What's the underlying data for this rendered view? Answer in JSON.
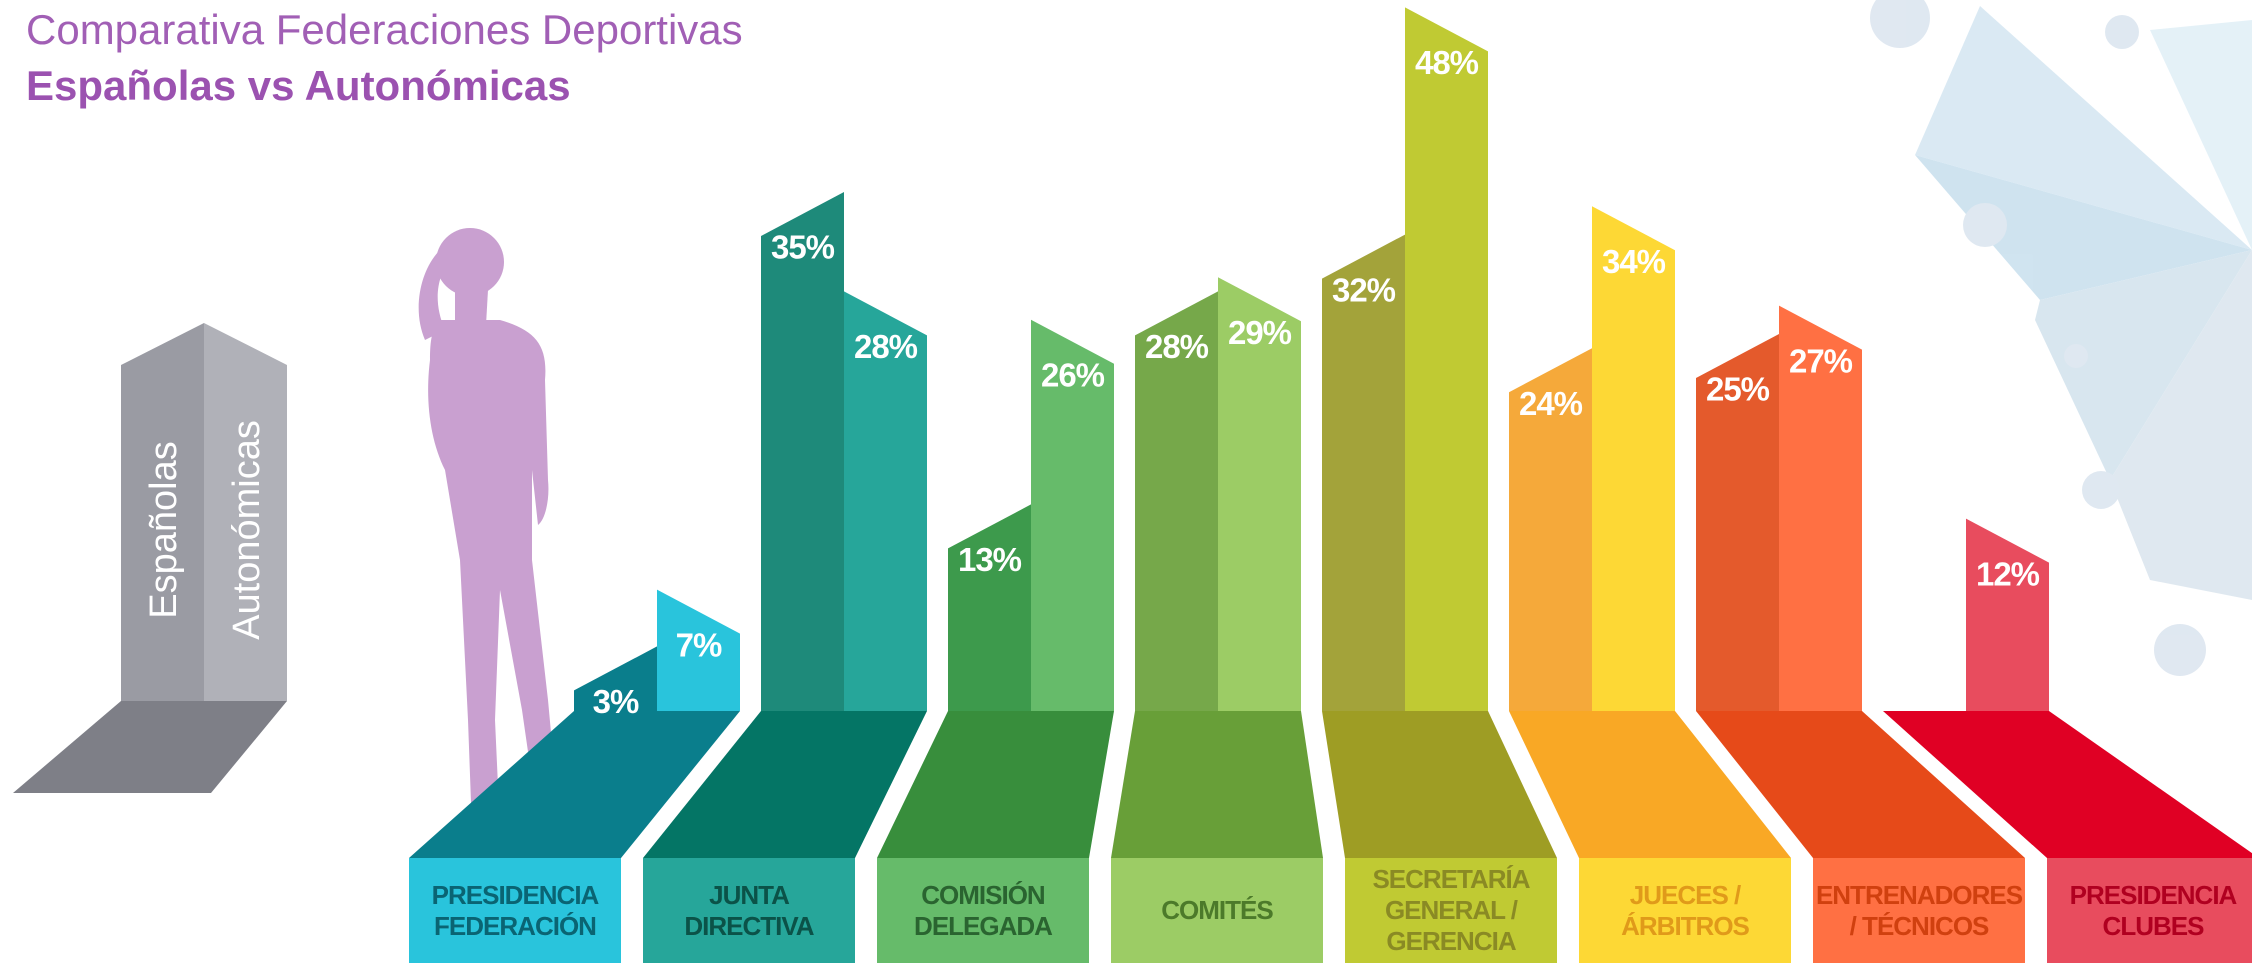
{
  "chart_data": {
    "type": "bar",
    "title": "Comparativa Federaciones Deportivas",
    "subtitle": "Españolas vs Autonómicas",
    "categories": [
      "PRESIDENCIA FEDERACIÓN",
      "JUNTA DIRECTIVA",
      "COMISIÓN DELEGADA",
      "COMITÉS",
      "SECRETARÍA GENERAL / GERENCIA",
      "JUECES / ÁRBITROS",
      "ENTRENADORES / TÉCNICOS",
      "PRESIDENCIA CLUBES"
    ],
    "series": [
      {
        "name": "Españolas",
        "color": "#9a9ba3",
        "values": [
          3,
          35,
          13,
          28,
          32,
          24,
          25,
          null
        ],
        "value_labels": [
          "3%",
          "35%",
          "13%",
          "28%",
          "32%",
          "24%",
          "25%",
          null
        ]
      },
      {
        "name": "Autonómicas",
        "color": "#b0b1b8",
        "values": [
          7,
          28,
          26,
          29,
          48,
          34,
          27,
          12
        ],
        "value_labels": [
          "7%",
          "28%",
          "26%",
          "29%",
          "48%",
          "34%",
          "27%",
          "12%"
        ]
      }
    ],
    "category_colors": [
      {
        "dark": "#0a7e8c",
        "light": "#29c4dc",
        "floor": "#0a7e8c",
        "box": "#29c4dc",
        "text": "#0a6473"
      },
      {
        "dark": "#1e8a7a",
        "light": "#26a69a",
        "floor": "#047565",
        "box": "#26a69a",
        "text": "#0b5248"
      },
      {
        "dark": "#3d9a4c",
        "light": "#66bb6a",
        "floor": "#388e3c",
        "box": "#66bb6a",
        "text": "#2a6430"
      },
      {
        "dark": "#76a84a",
        "light": "#9ccc65",
        "floor": "#689f38",
        "box": "#9ccc65",
        "text": "#4c7a2a"
      },
      {
        "dark": "#a3a33a",
        "light": "#c0ca33",
        "floor": "#9e9d24",
        "box": "#c0ca33",
        "text": "#8a8a24"
      },
      {
        "dark": "#f5a93a",
        "light": "#fdd835",
        "floor": "#f9a825",
        "box": "#fdd835",
        "text": "#e09a1a"
      },
      {
        "dark": "#e45a2c",
        "light": "#ff7043",
        "floor": "#e64a19",
        "box": "#ff7043",
        "text": "#d0400f"
      },
      {
        "dark": "#c2344a",
        "light": "#e84c5e",
        "floor": "#e00024",
        "box": "#e84c5e",
        "text": "#b00020"
      }
    ],
    "legend_floor_color": "#7e7f87"
  }
}
